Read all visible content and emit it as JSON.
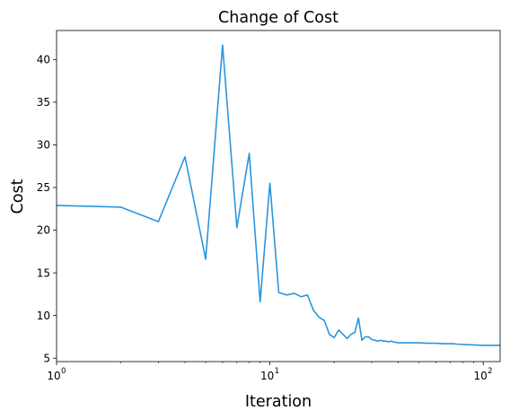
{
  "chart_data": {
    "type": "line",
    "title": "Change of Cost",
    "xlabel": "Iteration",
    "ylabel": "Cost",
    "xscale": "log",
    "xlim": [
      1,
      120
    ],
    "ylim": [
      4.6,
      43.4
    ],
    "grid": false,
    "legend": "none",
    "line_color": "#2b95dd",
    "x_ticks": [
      1,
      10,
      100
    ],
    "x_tick_labels": [
      {
        "base": "10",
        "exp": "0"
      },
      {
        "base": "10",
        "exp": "1"
      },
      {
        "base": "10",
        "exp": "2"
      }
    ],
    "y_ticks": [
      5,
      10,
      15,
      20,
      25,
      30,
      35,
      40
    ],
    "y_tick_labels": [
      "5",
      "10",
      "15",
      "20",
      "25",
      "30",
      "35",
      "40"
    ],
    "x": [
      1,
      2,
      3,
      4,
      5,
      6,
      7,
      8,
      9,
      10,
      11,
      12,
      13,
      14,
      15,
      16,
      17,
      18,
      19,
      20,
      21,
      22,
      23,
      24,
      25,
      26,
      27,
      28,
      29,
      30,
      31,
      32,
      33,
      34,
      35,
      36,
      37,
      38,
      40,
      45,
      50,
      55,
      60,
      65,
      70,
      72,
      75,
      80,
      90,
      100,
      110,
      120
    ],
    "y": [
      22.9,
      22.7,
      21.0,
      28.6,
      16.6,
      41.7,
      20.3,
      29.0,
      11.6,
      25.5,
      12.7,
      12.4,
      12.6,
      12.2,
      12.4,
      10.6,
      9.8,
      9.4,
      7.8,
      7.4,
      8.3,
      7.8,
      7.3,
      7.8,
      8.0,
      9.7,
      7.1,
      7.5,
      7.5,
      7.2,
      7.1,
      7.0,
      7.1,
      7.0,
      7.0,
      6.9,
      7.0,
      6.9,
      6.8,
      6.8,
      6.8,
      6.75,
      6.75,
      6.7,
      6.7,
      6.7,
      6.65,
      6.6,
      6.55,
      6.5,
      6.5,
      6.5
    ]
  }
}
